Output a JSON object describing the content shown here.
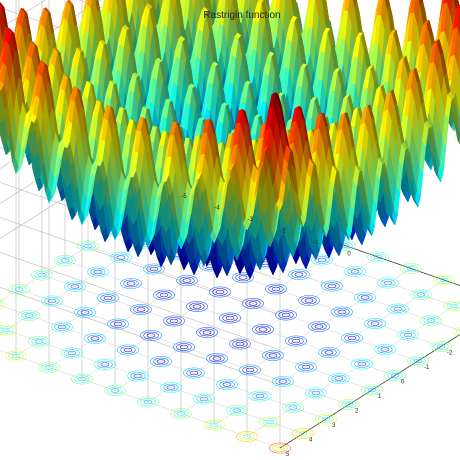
{
  "chart_data": {
    "type": "surface",
    "title": "Rastrigin function",
    "function": "f(x, y) = 20 + x^2 + y^2 - 10*(cos(2*pi*x) + cos(2*pi*y))",
    "x_range": [
      -5,
      5
    ],
    "y_range": [
      -5,
      5
    ],
    "z_range": [
      0,
      80
    ],
    "x_ticks": [
      "-5",
      "-4",
      "-3",
      "-2",
      "-1",
      "0"
    ],
    "y_ticks": [
      "-5",
      "-4",
      "-3",
      "-2",
      "-1",
      "0",
      "1",
      "2",
      "3",
      "4",
      "5"
    ],
    "contour_projection": true,
    "grid": true,
    "colormap": "jet",
    "colormap_stops": [
      "#00008f",
      "#0000ff",
      "#00ffff",
      "#ffff00",
      "#ff0000",
      "#800000"
    ]
  }
}
